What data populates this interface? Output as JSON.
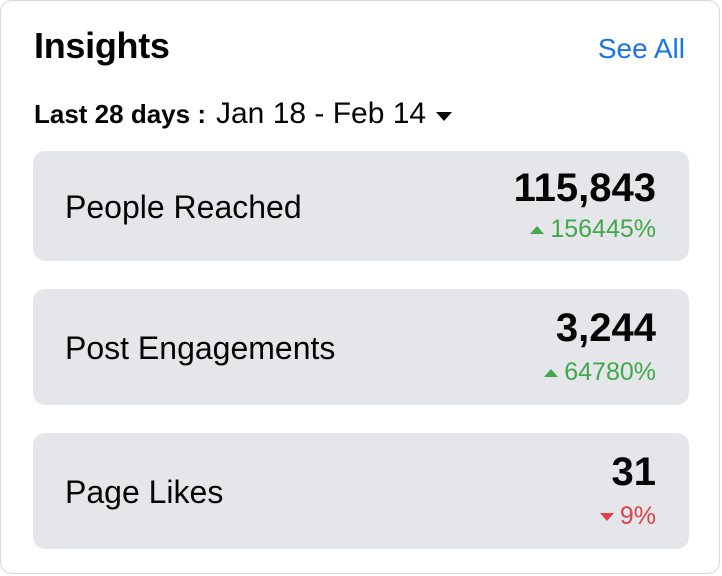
{
  "header": {
    "title": "Insights",
    "see_all": "See All"
  },
  "date_range": {
    "label": "Last 28 days :",
    "range": "Jan 18 - Feb 14"
  },
  "metrics": [
    {
      "name": "People Reached",
      "value": "115,843",
      "delta": "156445%",
      "trend": "up"
    },
    {
      "name": "Post Engagements",
      "value": "3,244",
      "delta": "64780%",
      "trend": "up"
    },
    {
      "name": "Page Likes",
      "value": "31",
      "delta": "9%",
      "trend": "down"
    }
  ],
  "colors": {
    "accent": "#1b74e4",
    "positive": "#42a84b",
    "negative": "#e0414c",
    "tile": "#e4e6ea"
  }
}
